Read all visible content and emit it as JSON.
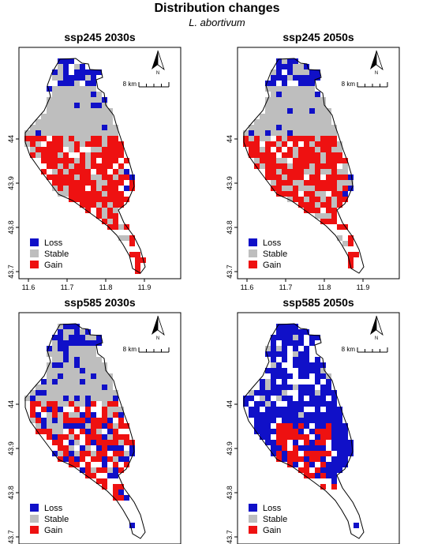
{
  "figure": {
    "title": "Distribution changes",
    "species": "L. abortivum"
  },
  "colors": {
    "loss": "#1010c8",
    "stable": "#bebebe",
    "gain": "#ee1111",
    "outline": "#000000"
  },
  "legend": [
    {
      "key": "loss",
      "label": "Loss"
    },
    {
      "key": "stable",
      "label": "Stable"
    },
    {
      "key": "gain",
      "label": "Gain"
    }
  ],
  "scale_bar": {
    "label": "8 km"
  },
  "north_arrow": {
    "label": "N"
  },
  "axes": {
    "x_ticks": [
      "11.6",
      "11.7",
      "11.8",
      "11.9"
    ],
    "y_ticks": [
      "43.7",
      "43.8",
      "43.9",
      "44"
    ]
  },
  "panels": [
    {
      "id": "ssp245-2030s",
      "title": "ssp245 2030s",
      "pattern": "a"
    },
    {
      "id": "ssp245-2050s",
      "title": "ssp245 2050s",
      "pattern": "b"
    },
    {
      "id": "ssp585-2030s",
      "title": "ssp585 2030s",
      "pattern": "c"
    },
    {
      "id": "ssp585-2050s",
      "title": "ssp585 2050s",
      "pattern": "d"
    }
  ]
}
